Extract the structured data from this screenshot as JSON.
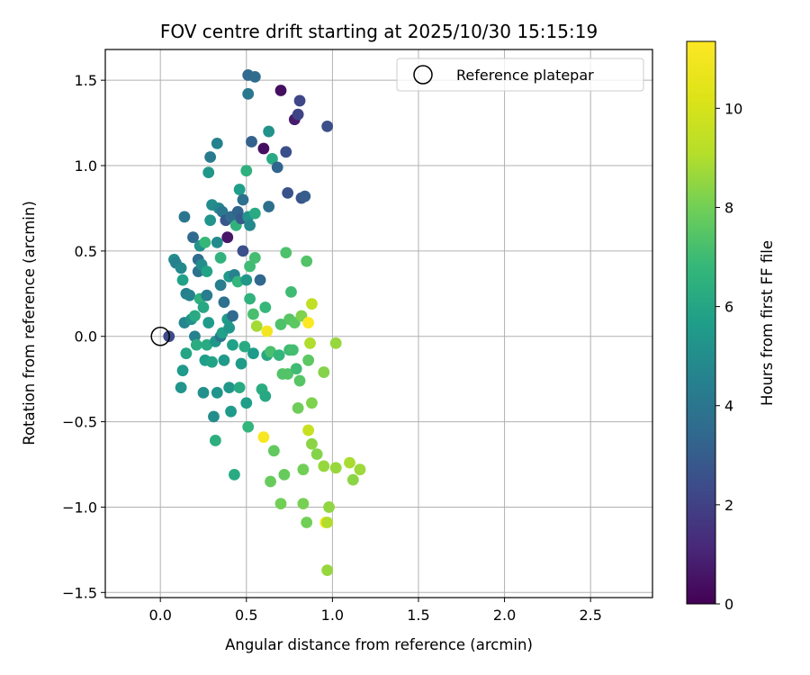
{
  "chart_data": {
    "type": "scatter",
    "title": "FOV centre drift starting at 2025/10/30 15:15:19",
    "xlabel": "Angular distance from reference (arcmin)",
    "ylabel": "Rotation from reference (arcmin)",
    "xlim": [
      -0.32,
      2.86
    ],
    "ylim": [
      -1.53,
      1.68
    ],
    "xticks": [
      0.0,
      0.5,
      1.0,
      1.5,
      2.0,
      2.5
    ],
    "xtick_labels": [
      "0.0",
      "0.5",
      "1.0",
      "1.5",
      "2.0",
      "2.5"
    ],
    "yticks": [
      -1.5,
      -1.0,
      -0.5,
      0.0,
      0.5,
      1.0,
      1.5
    ],
    "ytick_labels": [
      "−1.5",
      "−1.0",
      "−0.5",
      "0.0",
      "0.5",
      "1.0",
      "1.5"
    ],
    "grid": true,
    "colorbar": {
      "label": "Hours from first FF file",
      "min": 0,
      "max": 11.35,
      "colormap": "viridis",
      "ticks": [
        0,
        2,
        4,
        6,
        8,
        10
      ],
      "tick_labels": [
        "0",
        "2",
        "4",
        "6",
        "8",
        "10"
      ]
    },
    "reference": {
      "name": "Reference platepar",
      "x": 0.0,
      "y": 0.0
    },
    "legend": {
      "placement": "top-right",
      "entries": [
        "Reference platepar"
      ]
    },
    "points": [
      {
        "x": 0.05,
        "y": 0.0,
        "t": 2.3
      },
      {
        "x": 0.08,
        "y": 0.45,
        "t": 5.0
      },
      {
        "x": 0.09,
        "y": 0.43,
        "t": 4.5
      },
      {
        "x": 0.12,
        "y": 0.4,
        "t": 4.8
      },
      {
        "x": 0.12,
        "y": -0.3,
        "t": 5.3
      },
      {
        "x": 0.13,
        "y": -0.2,
        "t": 5.5
      },
      {
        "x": 0.13,
        "y": 0.33,
        "t": 5.8
      },
      {
        "x": 0.14,
        "y": 0.7,
        "t": 4.0
      },
      {
        "x": 0.14,
        "y": 0.08,
        "t": 4.7
      },
      {
        "x": 0.15,
        "y": 0.25,
        "t": 4.4
      },
      {
        "x": 0.15,
        "y": -0.1,
        "t": 6.0
      },
      {
        "x": 0.17,
        "y": 0.24,
        "t": 4.6
      },
      {
        "x": 0.18,
        "y": 0.1,
        "t": 5.2
      },
      {
        "x": 0.19,
        "y": 0.58,
        "t": 3.5
      },
      {
        "x": 0.2,
        "y": 0.0,
        "t": 4.5
      },
      {
        "x": 0.2,
        "y": 0.12,
        "t": 6.2
      },
      {
        "x": 0.21,
        "y": -0.05,
        "t": 6.3
      },
      {
        "x": 0.22,
        "y": 0.45,
        "t": 3.6
      },
      {
        "x": 0.22,
        "y": 0.38,
        "t": 3.8
      },
      {
        "x": 0.23,
        "y": 0.22,
        "t": 6.5
      },
      {
        "x": 0.23,
        "y": 0.53,
        "t": 5.2
      },
      {
        "x": 0.24,
        "y": 0.42,
        "t": 5.0
      },
      {
        "x": 0.25,
        "y": -0.33,
        "t": 5.1
      },
      {
        "x": 0.25,
        "y": 0.17,
        "t": 6.1
      },
      {
        "x": 0.26,
        "y": 0.55,
        "t": 6.8
      },
      {
        "x": 0.26,
        "y": -0.14,
        "t": 5.7
      },
      {
        "x": 0.27,
        "y": 0.24,
        "t": 4.3
      },
      {
        "x": 0.27,
        "y": -0.05,
        "t": 6.2
      },
      {
        "x": 0.27,
        "y": 0.38,
        "t": 5.9
      },
      {
        "x": 0.28,
        "y": 0.96,
        "t": 5.4
      },
      {
        "x": 0.28,
        "y": 0.08,
        "t": 5.6
      },
      {
        "x": 0.29,
        "y": 1.05,
        "t": 4.2
      },
      {
        "x": 0.29,
        "y": 0.68,
        "t": 5.3
      },
      {
        "x": 0.3,
        "y": -0.15,
        "t": 5.9
      },
      {
        "x": 0.3,
        "y": 0.77,
        "t": 5.0
      },
      {
        "x": 0.31,
        "y": -0.47,
        "t": 5.0
      },
      {
        "x": 0.32,
        "y": -0.61,
        "t": 6.4
      },
      {
        "x": 0.32,
        "y": -0.03,
        "t": 5.4
      },
      {
        "x": 0.33,
        "y": 1.13,
        "t": 4.5
      },
      {
        "x": 0.33,
        "y": -0.33,
        "t": 5.3
      },
      {
        "x": 0.33,
        "y": 0.55,
        "t": 4.9
      },
      {
        "x": 0.34,
        "y": 0.75,
        "t": 4.7
      },
      {
        "x": 0.35,
        "y": 0.3,
        "t": 4.3
      },
      {
        "x": 0.35,
        "y": 0.46,
        "t": 6.6
      },
      {
        "x": 0.35,
        "y": 0.0,
        "t": 4.0
      },
      {
        "x": 0.36,
        "y": 0.02,
        "t": 5.8
      },
      {
        "x": 0.36,
        "y": 0.73,
        "t": 4.1
      },
      {
        "x": 0.37,
        "y": -0.14,
        "t": 5.5
      },
      {
        "x": 0.37,
        "y": 0.2,
        "t": 3.8
      },
      {
        "x": 0.38,
        "y": 0.68,
        "t": 2.8
      },
      {
        "x": 0.39,
        "y": 0.58,
        "t": 0.6
      },
      {
        "x": 0.39,
        "y": 0.1,
        "t": 5.6
      },
      {
        "x": 0.4,
        "y": 0.35,
        "t": 5.5
      },
      {
        "x": 0.4,
        "y": -0.3,
        "t": 5.4
      },
      {
        "x": 0.4,
        "y": 0.05,
        "t": 5.4
      },
      {
        "x": 0.41,
        "y": 0.7,
        "t": 3.6
      },
      {
        "x": 0.41,
        "y": -0.44,
        "t": 5.5
      },
      {
        "x": 0.42,
        "y": 0.12,
        "t": 3.5
      },
      {
        "x": 0.42,
        "y": -0.05,
        "t": 5.8
      },
      {
        "x": 0.43,
        "y": 0.36,
        "t": 4.6
      },
      {
        "x": 0.43,
        "y": -0.81,
        "t": 6.2
      },
      {
        "x": 0.44,
        "y": 0.65,
        "t": 6.6
      },
      {
        "x": 0.45,
        "y": 0.73,
        "t": 3.3
      },
      {
        "x": 0.45,
        "y": 0.32,
        "t": 6.7
      },
      {
        "x": 0.46,
        "y": 0.86,
        "t": 5.7
      },
      {
        "x": 0.46,
        "y": -0.3,
        "t": 6.2
      },
      {
        "x": 0.47,
        "y": 0.69,
        "t": 2.9
      },
      {
        "x": 0.47,
        "y": -0.16,
        "t": 5.6
      },
      {
        "x": 0.48,
        "y": 0.8,
        "t": 3.8
      },
      {
        "x": 0.48,
        "y": 0.5,
        "t": 2.5
      },
      {
        "x": 0.49,
        "y": -0.06,
        "t": 6.2
      },
      {
        "x": 0.5,
        "y": 0.33,
        "t": 5.4
      },
      {
        "x": 0.5,
        "y": 0.97,
        "t": 6.5
      },
      {
        "x": 0.5,
        "y": -0.39,
        "t": 5.7
      },
      {
        "x": 0.51,
        "y": 0.7,
        "t": 5.3
      },
      {
        "x": 0.51,
        "y": 1.53,
        "t": 3.5
      },
      {
        "x": 0.51,
        "y": -0.53,
        "t": 6.7
      },
      {
        "x": 0.51,
        "y": 1.42,
        "t": 4.1
      },
      {
        "x": 0.52,
        "y": 0.65,
        "t": 4.8
      },
      {
        "x": 0.52,
        "y": 0.41,
        "t": 7.0
      },
      {
        "x": 0.52,
        "y": 0.22,
        "t": 6.6
      },
      {
        "x": 0.53,
        "y": 1.14,
        "t": 3.2
      },
      {
        "x": 0.54,
        "y": 0.13,
        "t": 7.2
      },
      {
        "x": 0.54,
        "y": -0.1,
        "t": 5.6
      },
      {
        "x": 0.55,
        "y": 1.52,
        "t": 3.6
      },
      {
        "x": 0.55,
        "y": 0.46,
        "t": 7.1
      },
      {
        "x": 0.55,
        "y": 0.72,
        "t": 6.2
      },
      {
        "x": 0.56,
        "y": 0.06,
        "t": 8.8
      },
      {
        "x": 0.58,
        "y": 0.33,
        "t": 3.4
      },
      {
        "x": 0.59,
        "y": -0.31,
        "t": 6.3
      },
      {
        "x": 0.6,
        "y": 1.1,
        "t": 0.4
      },
      {
        "x": 0.6,
        "y": -0.59,
        "t": 11.2
      },
      {
        "x": 0.61,
        "y": -0.35,
        "t": 6.1
      },
      {
        "x": 0.61,
        "y": 0.17,
        "t": 6.8
      },
      {
        "x": 0.62,
        "y": 0.03,
        "t": 11.0
      },
      {
        "x": 0.62,
        "y": -0.11,
        "t": 6.1
      },
      {
        "x": 0.63,
        "y": 0.76,
        "t": 3.7
      },
      {
        "x": 0.63,
        "y": 1.2,
        "t": 5.2
      },
      {
        "x": 0.64,
        "y": -0.09,
        "t": 7.2
      },
      {
        "x": 0.64,
        "y": -0.85,
        "t": 7.8
      },
      {
        "x": 0.65,
        "y": 1.04,
        "t": 6.2
      },
      {
        "x": 0.66,
        "y": -0.67,
        "t": 7.7
      },
      {
        "x": 0.68,
        "y": 0.99,
        "t": 3.3
      },
      {
        "x": 0.69,
        "y": -0.11,
        "t": 6.7
      },
      {
        "x": 0.7,
        "y": 1.44,
        "t": 0.4
      },
      {
        "x": 0.7,
        "y": 0.07,
        "t": 7.3
      },
      {
        "x": 0.7,
        "y": -0.98,
        "t": 8.0
      },
      {
        "x": 0.71,
        "y": -0.22,
        "t": 7.4
      },
      {
        "x": 0.72,
        "y": -0.81,
        "t": 7.8
      },
      {
        "x": 0.73,
        "y": 1.08,
        "t": 2.5
      },
      {
        "x": 0.73,
        "y": 0.49,
        "t": 7.3
      },
      {
        "x": 0.74,
        "y": 0.84,
        "t": 2.6
      },
      {
        "x": 0.74,
        "y": -0.22,
        "t": 7.4
      },
      {
        "x": 0.75,
        "y": 0.1,
        "t": 7.5
      },
      {
        "x": 0.75,
        "y": -0.08,
        "t": 7.0
      },
      {
        "x": 0.76,
        "y": 0.26,
        "t": 7.0
      },
      {
        "x": 0.77,
        "y": -0.08,
        "t": 7.1
      },
      {
        "x": 0.78,
        "y": 1.27,
        "t": 0.8
      },
      {
        "x": 0.78,
        "y": 0.08,
        "t": 7.6
      },
      {
        "x": 0.79,
        "y": -0.19,
        "t": 7.0
      },
      {
        "x": 0.8,
        "y": 1.3,
        "t": 2.1
      },
      {
        "x": 0.8,
        "y": -0.42,
        "t": 7.9
      },
      {
        "x": 0.81,
        "y": -0.26,
        "t": 7.5
      },
      {
        "x": 0.81,
        "y": 1.38,
        "t": 2.2
      },
      {
        "x": 0.82,
        "y": 0.12,
        "t": 8.2
      },
      {
        "x": 0.82,
        "y": 0.81,
        "t": 2.7
      },
      {
        "x": 0.83,
        "y": -0.78,
        "t": 8.0
      },
      {
        "x": 0.83,
        "y": -0.98,
        "t": 8.1
      },
      {
        "x": 0.84,
        "y": 0.82,
        "t": 3.0
      },
      {
        "x": 0.85,
        "y": 0.44,
        "t": 7.4
      },
      {
        "x": 0.85,
        "y": -1.09,
        "t": 8.0
      },
      {
        "x": 0.86,
        "y": -0.14,
        "t": 7.6
      },
      {
        "x": 0.86,
        "y": 0.08,
        "t": 11.3
      },
      {
        "x": 0.86,
        "y": -0.55,
        "t": 9.6
      },
      {
        "x": 0.87,
        "y": -0.04,
        "t": 9.0
      },
      {
        "x": 0.88,
        "y": -0.39,
        "t": 8.2
      },
      {
        "x": 0.88,
        "y": 0.19,
        "t": 9.4
      },
      {
        "x": 0.88,
        "y": -0.63,
        "t": 8.4
      },
      {
        "x": 0.91,
        "y": -0.69,
        "t": 8.3
      },
      {
        "x": 0.95,
        "y": -0.21,
        "t": 8.3
      },
      {
        "x": 0.95,
        "y": -0.76,
        "t": 8.6
      },
      {
        "x": 0.96,
        "y": -1.09,
        "t": 11.1
      },
      {
        "x": 0.97,
        "y": -1.37,
        "t": 8.6
      },
      {
        "x": 0.97,
        "y": 1.23,
        "t": 2.5
      },
      {
        "x": 0.97,
        "y": -1.09,
        "t": 9.0
      },
      {
        "x": 0.98,
        "y": -1.0,
        "t": 8.5
      },
      {
        "x": 1.02,
        "y": -0.04,
        "t": 8.6
      },
      {
        "x": 1.02,
        "y": -0.77,
        "t": 8.6
      },
      {
        "x": 1.1,
        "y": -0.74,
        "t": 8.9
      },
      {
        "x": 1.12,
        "y": -0.84,
        "t": 8.4
      },
      {
        "x": 1.16,
        "y": -0.78,
        "t": 8.7
      }
    ]
  }
}
